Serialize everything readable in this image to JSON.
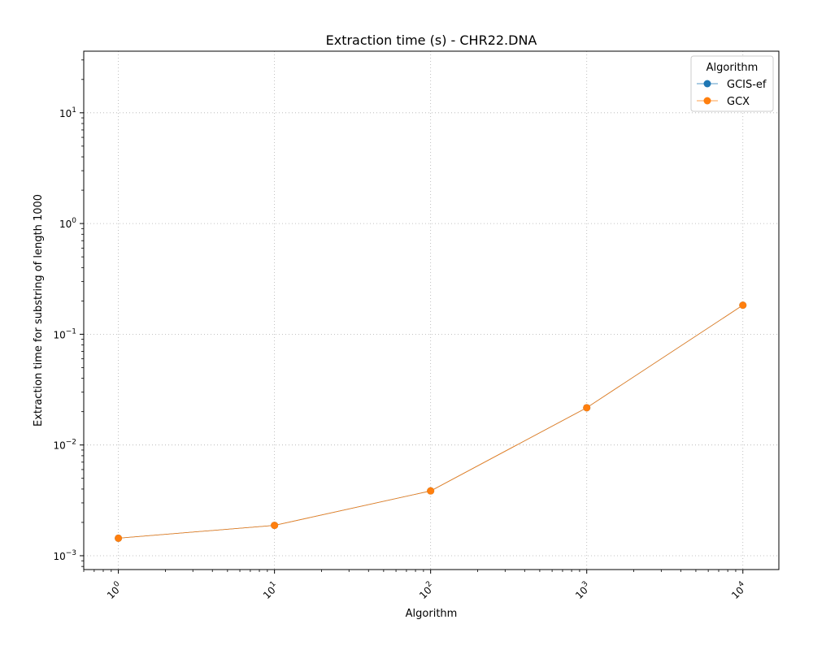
{
  "chart_data": {
    "type": "line",
    "title": "Extraction time (s) - CHR22.DNA",
    "xlabel": "Algorithm",
    "ylabel": "Extraction time for substring of length 1000",
    "xscale": "log",
    "yscale": "log",
    "xlim": [
      0.6,
      17000
    ],
    "ylim": [
      0.00075,
      36
    ],
    "grid": true,
    "x": [
      1,
      10,
      100,
      1000,
      10000
    ],
    "x_ticks": [
      {
        "base": "10",
        "exp": "0"
      },
      {
        "base": "10",
        "exp": "1"
      },
      {
        "base": "10",
        "exp": "2"
      },
      {
        "base": "10",
        "exp": "3"
      },
      {
        "base": "10",
        "exp": "4"
      }
    ],
    "y_ticks": [
      {
        "base": "10",
        "exp": "−3"
      },
      {
        "base": "10",
        "exp": "−2"
      },
      {
        "base": "10",
        "exp": "−1"
      },
      {
        "base": "10",
        "exp": "0"
      },
      {
        "base": "10",
        "exp": "1"
      }
    ],
    "legend": {
      "title": "Algorithm",
      "placement": "top-right"
    },
    "series": [
      {
        "name": "GCIS-ef",
        "color": "#1f77b4",
        "values": [
          0.00144,
          0.00188,
          0.00385,
          0.0217,
          0.183
        ]
      },
      {
        "name": "GCX",
        "color": "#ff7f0e",
        "values": [
          0.00144,
          0.00188,
          0.00385,
          0.0217,
          0.183
        ]
      }
    ]
  }
}
